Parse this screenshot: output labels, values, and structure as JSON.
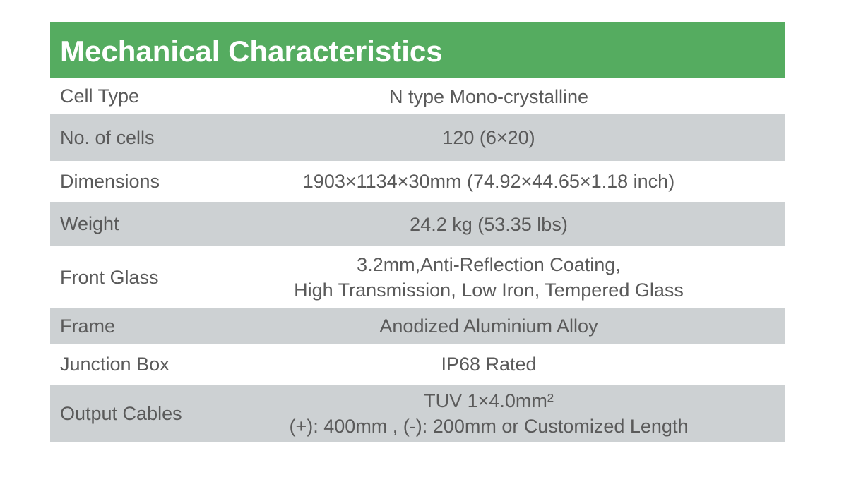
{
  "title": "Mechanical Characteristics",
  "table": {
    "rows": [
      {
        "label": "Cell  Type",
        "value": [
          "N type Mono-crystalline"
        ]
      },
      {
        "label": "No. of cells",
        "value": [
          "120 (6×20)"
        ]
      },
      {
        "label": "Dimensions",
        "value": [
          "1903×1134×30mm (74.92×44.65×1.18 inch)"
        ]
      },
      {
        "label": "Weight",
        "value": [
          "24.2 kg (53.35 lbs)"
        ]
      },
      {
        "label": "Front Glass",
        "value": [
          "3.2mm,Anti-Reflection Coating,",
          "High Transmission, Low Iron, Tempered Glass"
        ]
      },
      {
        "label": "Frame",
        "value": [
          "Anodized Aluminium Alloy"
        ]
      },
      {
        "label": "Junction Box",
        "value": [
          "IP68 Rated"
        ]
      },
      {
        "label": "Output Cables",
        "value": [
          "TUV  1×4.0mm²",
          "(+): 400mm , (-): 200mm or Customized Length"
        ]
      }
    ]
  }
}
